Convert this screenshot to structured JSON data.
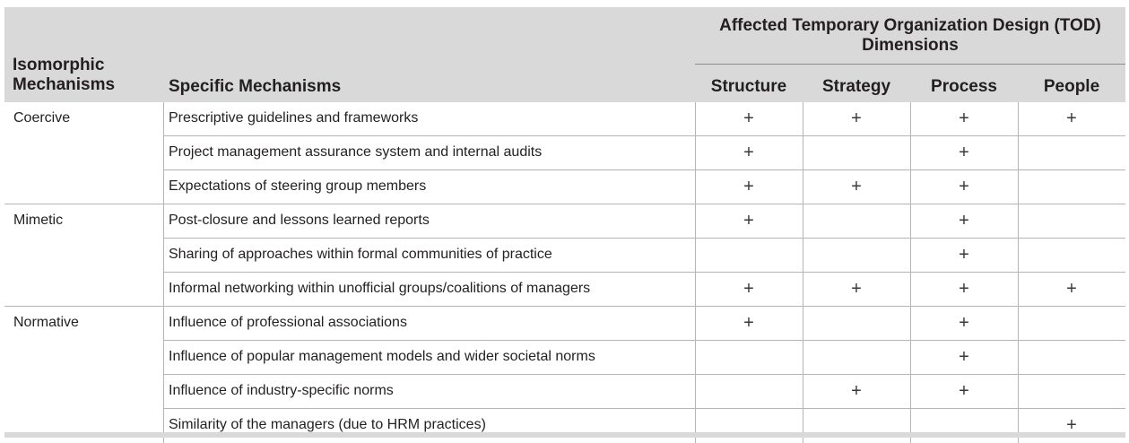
{
  "header": {
    "isomorphic": "Isomorphic\nMechanisms",
    "specific": "Specific Mechanisms",
    "affected": "Affected Temporary Organization Design (TOD) Dimensions",
    "dimensions": [
      "Structure",
      "Strategy",
      "Process",
      "People"
    ]
  },
  "mark": "+",
  "groups": [
    {
      "name": "Coercive",
      "rows": [
        {
          "mechanism": "Prescriptive guidelines and frameworks",
          "structure": true,
          "strategy": true,
          "process": true,
          "people": true
        },
        {
          "mechanism": "Project management assurance system and internal audits",
          "structure": true,
          "strategy": false,
          "process": true,
          "people": false
        },
        {
          "mechanism": "Expectations of steering group members",
          "structure": true,
          "strategy": true,
          "process": true,
          "people": false
        }
      ]
    },
    {
      "name": "Mimetic",
      "rows": [
        {
          "mechanism": "Post-closure and lessons learned reports",
          "structure": true,
          "strategy": false,
          "process": true,
          "people": false
        },
        {
          "mechanism": "Sharing of approaches within formal communities of practice",
          "structure": false,
          "strategy": false,
          "process": true,
          "people": false
        },
        {
          "mechanism": "Informal networking within unofficial groups/coalitions of managers",
          "structure": true,
          "strategy": true,
          "process": true,
          "people": true
        }
      ]
    },
    {
      "name": "Normative",
      "rows": [
        {
          "mechanism": "Influence of professional associations",
          "structure": true,
          "strategy": false,
          "process": true,
          "people": false
        },
        {
          "mechanism": "Influence of popular management models and wider societal norms",
          "structure": false,
          "strategy": false,
          "process": true,
          "people": false
        },
        {
          "mechanism": "Influence of industry-specific norms",
          "structure": false,
          "strategy": true,
          "process": true,
          "people": false
        },
        {
          "mechanism": "Similarity of the managers (due to HRM practices)",
          "structure": false,
          "strategy": false,
          "process": false,
          "people": true
        }
      ]
    }
  ]
}
